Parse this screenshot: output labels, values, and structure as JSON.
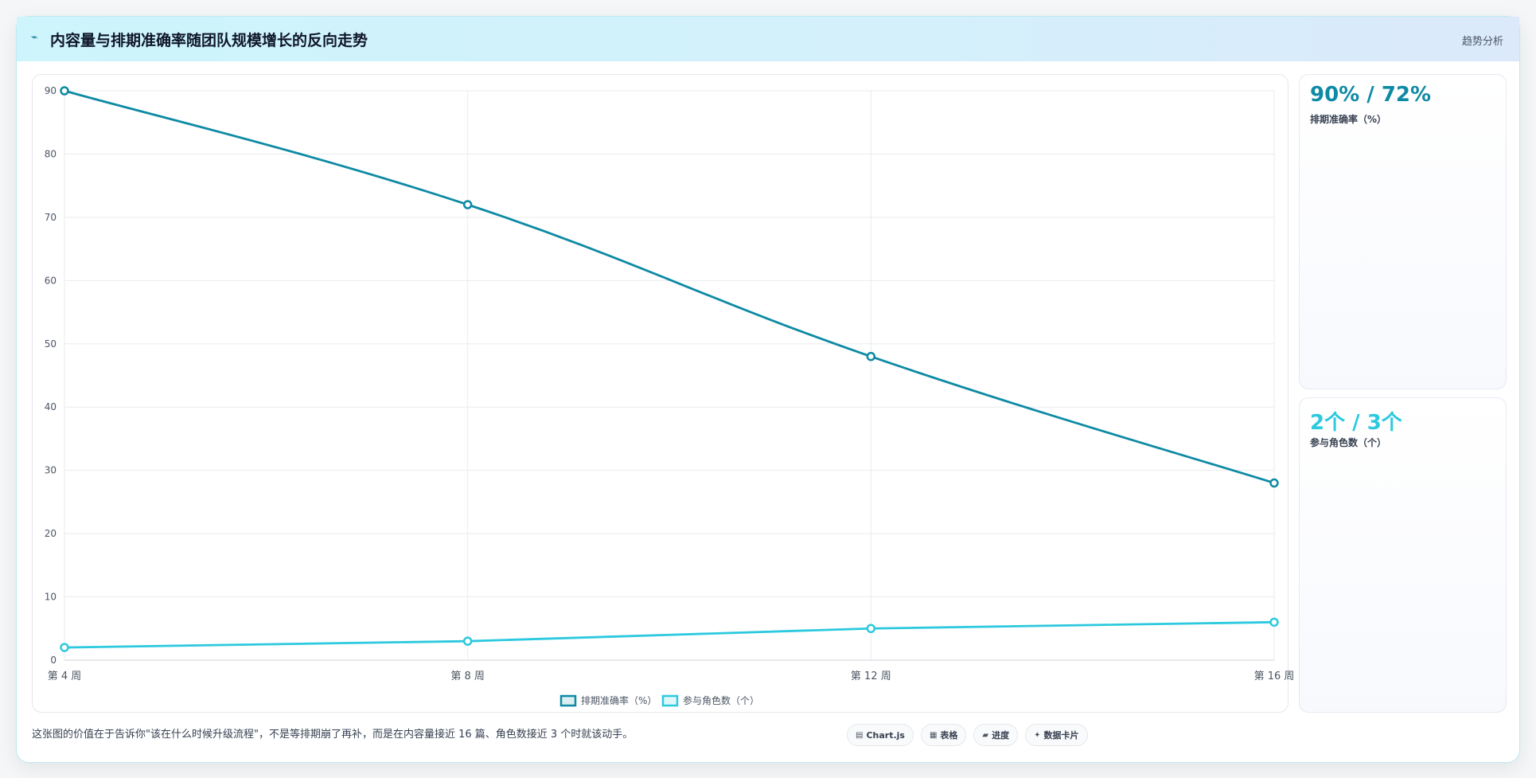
{
  "header": {
    "icon": "trend-icon",
    "icon_glyph": "⌁",
    "title": "内容量与排期准确率随团队规模增长的反向走势",
    "tag": "趋势分析"
  },
  "stats": [
    {
      "value": "90% / 72%",
      "label": "排期准确率（%）",
      "color": "#0e8aa4"
    },
    {
      "value": "2个 / 3个",
      "label": "参与角色数（个）",
      "color": "#2cc9df"
    }
  ],
  "footer": {
    "text": "这张图的价值在于告诉你\"该在什么时候升级流程\"，不是等排期崩了再补，而是在内容量接近 16 篇、角色数接近 3 个时就该动手。",
    "pills": [
      {
        "icon": "chart-icon",
        "glyph": "▤",
        "label": "Chart.js"
      },
      {
        "icon": "table-icon",
        "glyph": "▦",
        "label": "表格"
      },
      {
        "icon": "progress-icon",
        "glyph": "▰",
        "label": "进度"
      },
      {
        "icon": "card-icon",
        "glyph": "✦",
        "label": "数据卡片"
      }
    ]
  },
  "chart_data": {
    "type": "line",
    "title": "",
    "xlabel": "",
    "ylabel": "",
    "categories": [
      "第 4 周",
      "第 8 周",
      "第 12 周",
      "第 16 周"
    ],
    "ylim": [
      0,
      90
    ],
    "yticks": [
      0,
      10,
      20,
      30,
      40,
      50,
      60,
      70,
      80,
      90
    ],
    "grid": true,
    "legend_position": "bottom",
    "series": [
      {
        "name": "排期准确率（%）",
        "values": [
          90,
          72,
          48,
          28
        ],
        "color": "#0e8aa4"
      },
      {
        "name": "参与角色数（个）",
        "values": [
          2,
          3,
          5,
          6
        ],
        "color": "#2cc9df"
      }
    ]
  }
}
